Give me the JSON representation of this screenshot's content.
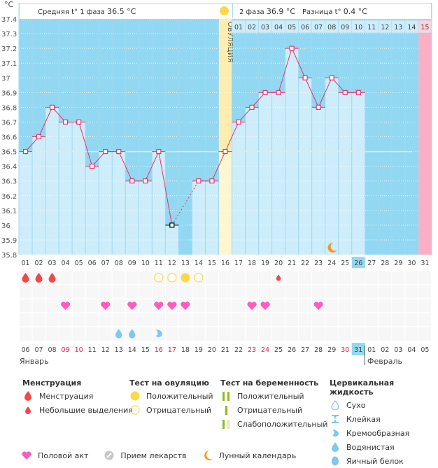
{
  "header": {
    "unit": "°C",
    "phase1_label": "Средняя t° 1 фаза",
    "phase1_value": "36.5 °C",
    "phase2_label": "2 фаза",
    "phase2_value": "36.9 °C",
    "diff_label": "Разница t°",
    "diff_value": "0.4 °C"
  },
  "ovulation_label": "ОВУЛЯЦИЯ",
  "months": {
    "first": "Январь",
    "second": "Февраль"
  },
  "chart_data": {
    "type": "line",
    "title": "",
    "xlabel": "",
    "ylabel": "°C",
    "ylim": [
      35.8,
      37.4
    ],
    "yticks": [
      35.8,
      35.9,
      36,
      36.1,
      36.2,
      36.3,
      36.4,
      36.5,
      36.6,
      36.7,
      36.8,
      36.9,
      37,
      37.1,
      37.2,
      37.3,
      37.4
    ],
    "cycle_days": [
      "01",
      "02",
      "03",
      "04",
      "05",
      "06",
      "07",
      "08",
      "09",
      "10",
      "11",
      "12",
      "13",
      "14",
      "15",
      "16",
      "17",
      "18",
      "19",
      "20",
      "21",
      "22",
      "23",
      "24",
      "25",
      "26",
      "27",
      "28",
      "29",
      "30",
      "31"
    ],
    "calendar_days": [
      "06",
      "07",
      "08",
      "09",
      "10",
      "11",
      "12",
      "13",
      "14",
      "15",
      "16",
      "17",
      "18",
      "19",
      "20",
      "21",
      "22",
      "23",
      "24",
      "25",
      "26",
      "27",
      "28",
      "29",
      "30",
      "31",
      "01",
      "02",
      "03",
      "04",
      "05"
    ],
    "red_calendar_days": [
      "09",
      "10",
      "16",
      "17",
      "23",
      "24",
      "30"
    ],
    "today_cycle_day": "26",
    "today_calendar_day": "31",
    "post_ovulation_days": [
      "01",
      "02",
      "03",
      "04",
      "05",
      "06",
      "07",
      "08",
      "09",
      "10",
      "11",
      "12",
      "13",
      "14",
      "15"
    ],
    "expected_period_marker": "15",
    "ovulation_day": 16,
    "coverline": 36.5,
    "series": [
      {
        "name": "BBT",
        "values": [
          36.5,
          36.6,
          36.8,
          36.7,
          36.7,
          36.4,
          36.5,
          36.5,
          36.3,
          36.3,
          36.5,
          36.0,
          null,
          36.3,
          36.3,
          36.5,
          36.7,
          36.8,
          36.9,
          36.9,
          37.2,
          37.0,
          36.8,
          37.0,
          36.9,
          36.9,
          null,
          null,
          null,
          null,
          null
        ]
      }
    ],
    "excluded_points": [
      12
    ],
    "markers": {
      "menstruation": [
        1,
        2,
        3
      ],
      "spotting": [
        20
      ],
      "ovulation_test_negative": [
        11,
        12,
        14
      ],
      "ovulation_test_positive": [
        13
      ],
      "intercourse": [
        4,
        7,
        9,
        11,
        12,
        13,
        18,
        19,
        23
      ],
      "cervical_watery": [
        8,
        9
      ],
      "cervical_creamy": [
        11
      ],
      "lunar": [
        24
      ]
    }
  },
  "legend": {
    "menstruation": {
      "title": "Менструация",
      "items": [
        "Менструация",
        "Небольшие выделения"
      ]
    },
    "ovulation_test": {
      "title": "Тест на овуляцию",
      "items": [
        "Положительный",
        "Отрицательный"
      ]
    },
    "pregnancy_test": {
      "title": "Тест на беременность",
      "items": [
        "Положительный",
        "Отрицательный",
        "Слабоположительный"
      ]
    },
    "cervical": {
      "title": "Цервикальная жидкость",
      "items": [
        "Сухо",
        "Клейкая",
        "Кремообразная",
        "Водянистая",
        "Яичный белок"
      ]
    },
    "bottom": [
      "Половой акт",
      "Прием лекарств",
      "Лунный календарь"
    ]
  },
  "colors": {
    "bg_blue": "#93d8f2",
    "bar_light": "#cdedfb",
    "line": "#e5336b",
    "ovulation": "#fdeeb0",
    "period_pink": "#fbafc6",
    "coverline": "#f5eaa0",
    "menstruation": "#f04848",
    "heart": "#fb5dbf",
    "ovu_test": "#fbd84a",
    "cervical": "#7ec8ef",
    "moon": "#f49a1b",
    "preg": "#8cbd1a"
  }
}
